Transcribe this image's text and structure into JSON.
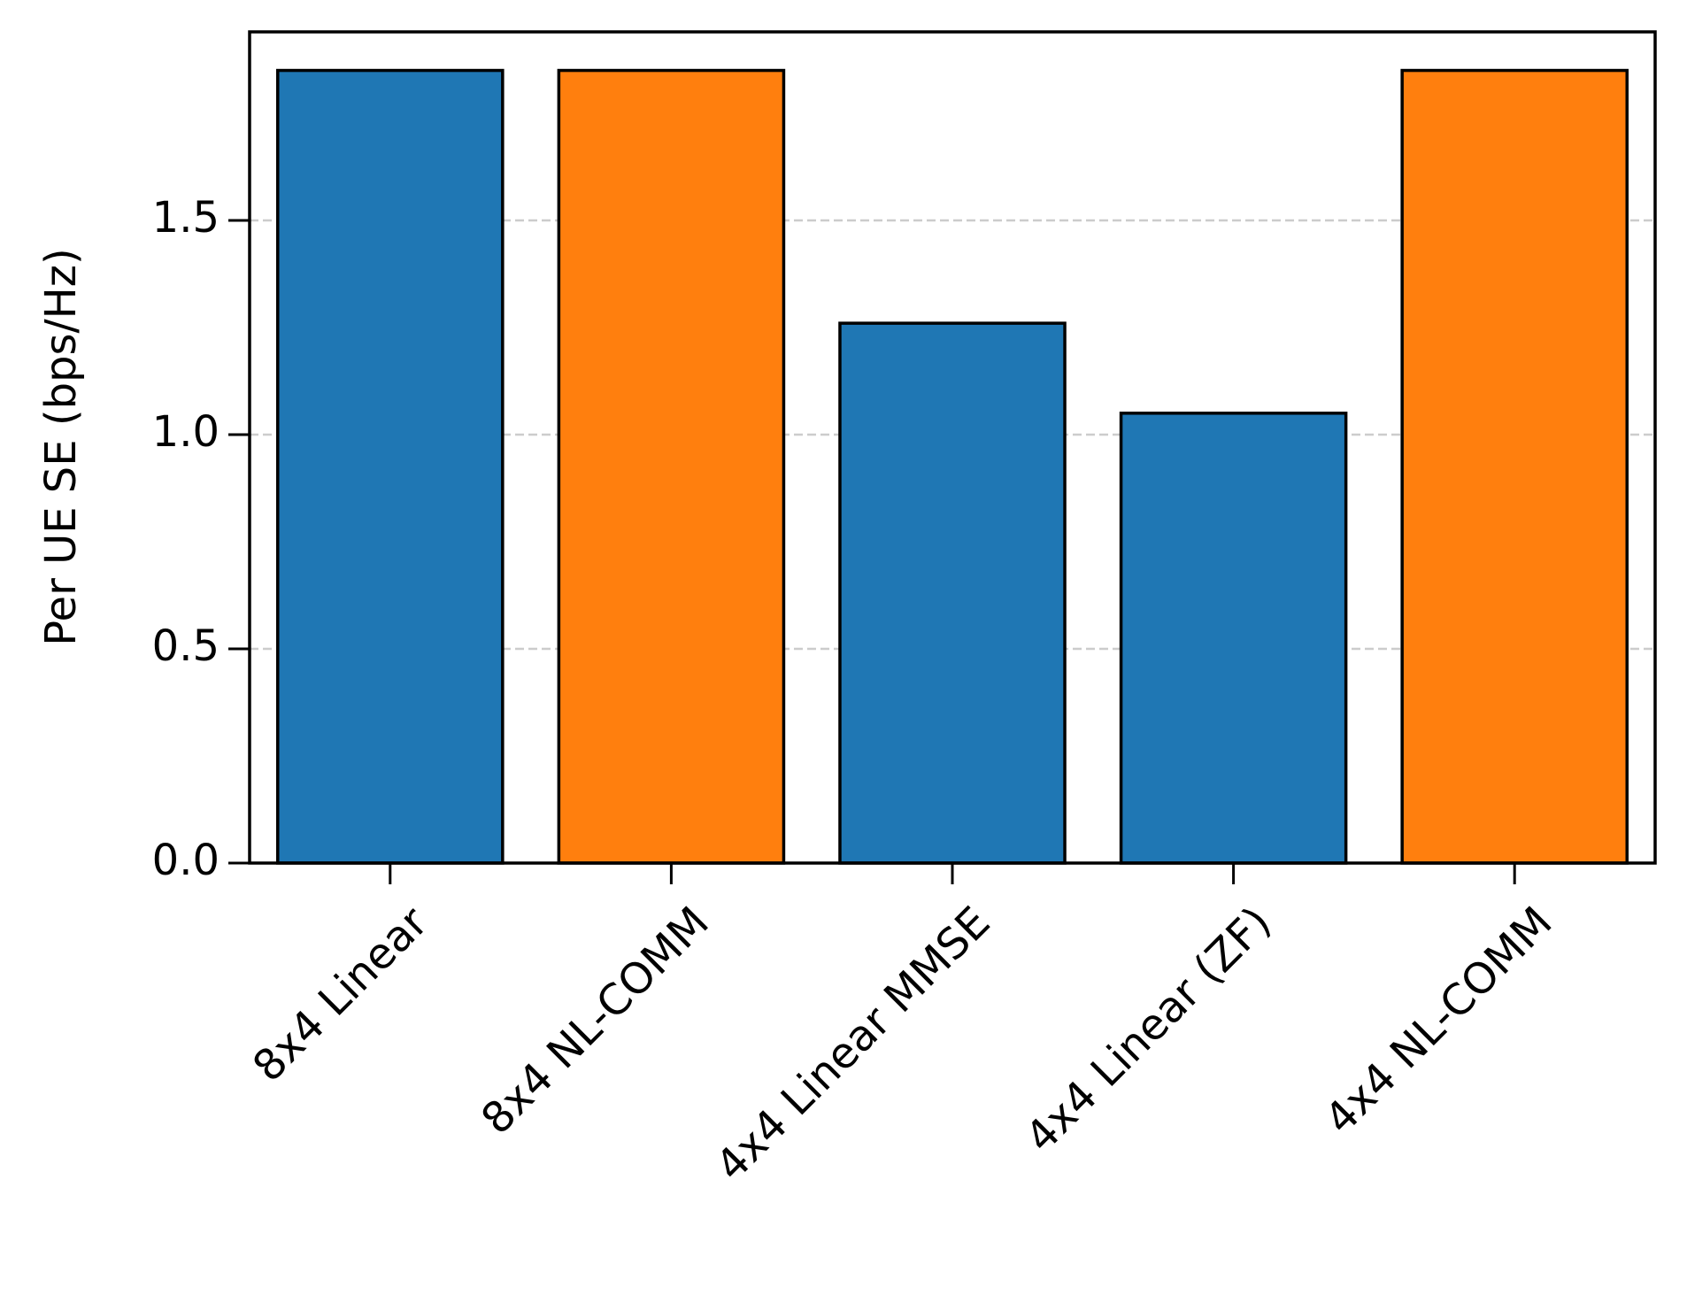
{
  "chart_data": {
    "type": "bar",
    "y_label": "Per UE SE (bps/Hz)",
    "categories": [
      "8x4 Linear",
      "8x4 NL-COMM",
      "4x4 Linear MMSE",
      "4x4 Linear (ZF)",
      "4x4 NL-COMM"
    ],
    "values": [
      1.85,
      1.85,
      1.26,
      1.05,
      1.85
    ],
    "colors": [
      "#1f77b4",
      "#ff7f0e",
      "#1f77b4",
      "#1f77b4",
      "#ff7f0e"
    ],
    "ylim": [
      0,
      1.94
    ],
    "yticks": [
      {
        "value": 0,
        "label": "0.0"
      },
      {
        "value": 0.5,
        "label": "0.5"
      },
      {
        "value": 1,
        "label": "1.0"
      },
      1.5
    ],
    "grid": true
  }
}
